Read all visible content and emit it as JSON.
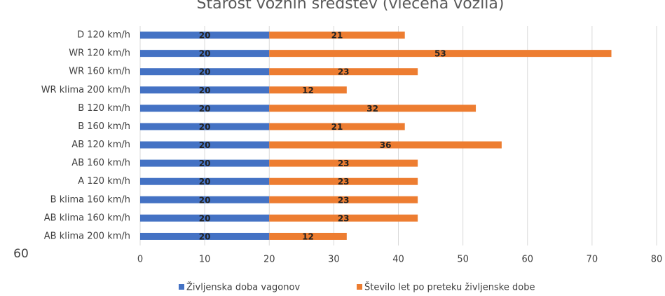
{
  "chart_data": {
    "type": "bar",
    "orientation": "horizontal",
    "stacked": true,
    "title": "Starost voznih sredstev (vlečena vozila)",
    "annotation": "60",
    "categories": [
      "D 120 km/h",
      "WR 120 km/h",
      "WR 160 km/h",
      "WR klima 200 km/h",
      "B 120 km/h",
      "B 160 km/h",
      "AB 120 km/h",
      "AB 160 km/h",
      "A 120 km/h",
      "B klima 160 km/h",
      "AB klima 160 km/h",
      "AB klima 200 km/h"
    ],
    "series": [
      {
        "name": "Življenska doba vagonov",
        "color": "#4472c4",
        "values": [
          20,
          20,
          20,
          20,
          20,
          20,
          20,
          20,
          20,
          20,
          20,
          20
        ]
      },
      {
        "name": "Število let po preteku življenske dobe",
        "color": "#ed7d31",
        "values": [
          21,
          53,
          23,
          12,
          32,
          21,
          36,
          23,
          23,
          23,
          23,
          12
        ]
      }
    ],
    "xlim": [
      0,
      80
    ],
    "xticks": [
      0,
      10,
      20,
      30,
      40,
      50,
      60,
      70,
      80
    ],
    "grid": true,
    "legend": "bottom"
  }
}
